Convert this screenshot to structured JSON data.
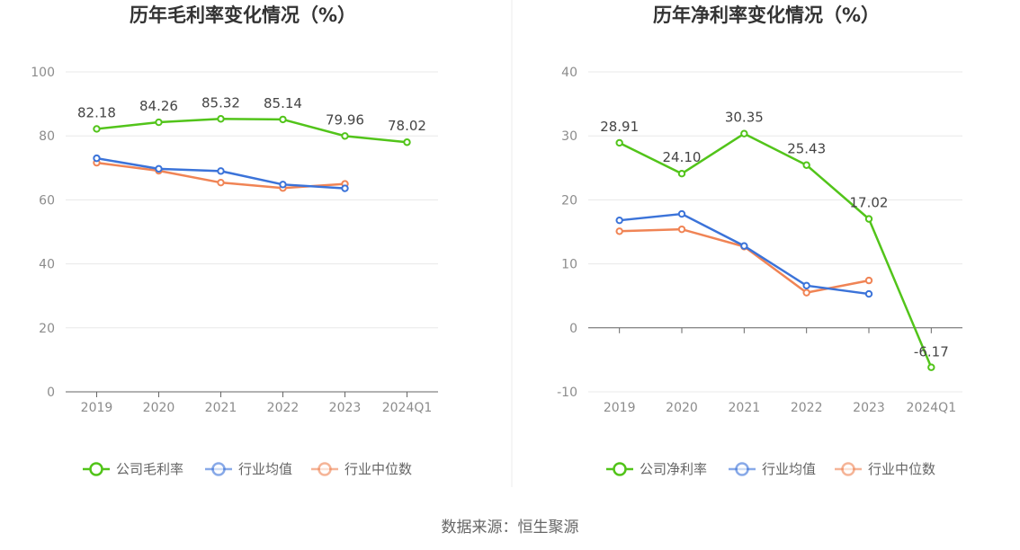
{
  "source": "数据来源：恒生聚源",
  "chart_data": [
    {
      "type": "line",
      "title": "历年毛利率变化情况（%）",
      "categories": [
        "2019",
        "2020",
        "2021",
        "2022",
        "2023",
        "2024Q1"
      ],
      "yticks": [
        "0",
        "20",
        "40",
        "60",
        "80",
        "100"
      ],
      "ylim": [
        0,
        100
      ],
      "grid": true,
      "legend_position": "bottom",
      "series": [
        {
          "name": "公司毛利率",
          "color": "#52c41a",
          "values": [
            82.18,
            84.26,
            85.32,
            85.14,
            79.96,
            78.02
          ],
          "labels": [
            "82.18",
            "84.26",
            "85.32",
            "85.14",
            "79.96",
            "78.02"
          ]
        },
        {
          "name": "行业均值",
          "color": "#3b73d9",
          "values": [
            73.0,
            69.7,
            69.0,
            64.8,
            63.6,
            null
          ]
        },
        {
          "name": "行业中位数",
          "color": "#f08455",
          "values": [
            71.6,
            69.1,
            65.4,
            63.7,
            65.0,
            null
          ]
        }
      ]
    },
    {
      "type": "line",
      "title": "历年净利率变化情况（%）",
      "categories": [
        "2019",
        "2020",
        "2021",
        "2022",
        "2023",
        "2024Q1"
      ],
      "yticks": [
        "-10",
        "0",
        "10",
        "20",
        "30",
        "40"
      ],
      "ylim": [
        -10,
        40
      ],
      "grid": true,
      "legend_position": "bottom",
      "series": [
        {
          "name": "公司净利率",
          "color": "#52c41a",
          "values": [
            28.91,
            24.1,
            30.35,
            25.43,
            17.02,
            -6.17
          ],
          "labels": [
            "28.91",
            "24.10",
            "30.35",
            "25.43",
            "17.02",
            "-6.17"
          ]
        },
        {
          "name": "行业均值",
          "color": "#3b73d9",
          "values": [
            16.8,
            17.8,
            12.8,
            6.6,
            5.3,
            null
          ]
        },
        {
          "name": "行业中位数",
          "color": "#f08455",
          "values": [
            15.1,
            15.4,
            12.7,
            5.5,
            7.4,
            null
          ]
        }
      ]
    }
  ]
}
